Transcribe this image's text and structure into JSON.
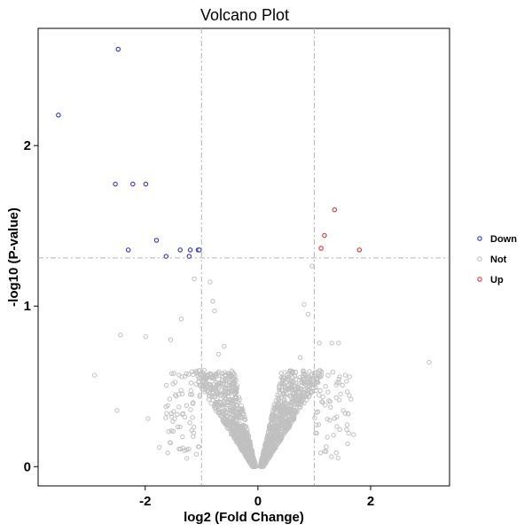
{
  "chart_data": {
    "type": "scatter",
    "title": "Volcano Plot",
    "xlabel": "log2 (Fold Change)",
    "ylabel": "-log10 (P-value)",
    "xlim": [
      -3.9,
      3.4
    ],
    "ylim": [
      -0.12,
      2.73
    ],
    "xticks": [
      -2,
      0,
      2
    ],
    "yticks": [
      0,
      1,
      2
    ],
    "thresholds": {
      "x": [
        -1,
        1
      ],
      "y": 1.3
    },
    "grid": false,
    "legend_position": "right",
    "legend": [
      {
        "key": "Down",
        "label": "Down",
        "color": "#3333cc"
      },
      {
        "key": "Not",
        "label": "Not",
        "color": "#c0c0c0"
      },
      {
        "key": "Up",
        "label": "Up",
        "color": "#dd3333"
      }
    ],
    "series": [
      {
        "name": "Down",
        "color": "#3333cc",
        "points": [
          [
            -2.48,
            2.6
          ],
          [
            -3.54,
            2.19
          ],
          [
            -2.53,
            1.76
          ],
          [
            -2.22,
            1.76
          ],
          [
            -1.99,
            1.76
          ],
          [
            -1.8,
            1.41
          ],
          [
            -2.3,
            1.35
          ],
          [
            -1.63,
            1.31
          ],
          [
            -1.38,
            1.35
          ],
          [
            -1.2,
            1.35
          ],
          [
            -1.06,
            1.35
          ],
          [
            -1.22,
            1.31
          ],
          [
            -1.04,
            1.35
          ]
        ]
      },
      {
        "name": "Up",
        "color": "#dd3333",
        "points": [
          [
            1.36,
            1.6
          ],
          [
            1.18,
            1.44
          ],
          [
            1.12,
            1.36
          ],
          [
            1.8,
            1.35
          ]
        ]
      },
      {
        "name": "Not",
        "color": "#c0c0c0",
        "points": [
          [
            0.96,
            1.25
          ],
          [
            -1.13,
            1.17
          ],
          [
            -0.85,
            1.15
          ],
          [
            -0.8,
            1.03
          ],
          [
            0.82,
            1.01
          ],
          [
            -1.36,
            0.92
          ],
          [
            -0.77,
            0.97
          ],
          [
            0.89,
            0.95
          ],
          [
            -2.44,
            0.82
          ],
          [
            -1.99,
            0.81
          ],
          [
            -1.55,
            0.79
          ],
          [
            -0.6,
            0.75
          ],
          [
            1.09,
            0.77
          ],
          [
            1.31,
            0.77
          ],
          [
            1.43,
            0.77
          ],
          [
            -2.9,
            0.57
          ],
          [
            3.04,
            0.65
          ],
          [
            1.55,
            0.57
          ],
          [
            -2.5,
            0.35
          ],
          [
            -1.95,
            0.3
          ],
          [
            -1.5,
            0.22
          ],
          [
            -1.2,
            0.45
          ],
          [
            -0.95,
            0.6
          ],
          [
            1.2,
            0.5
          ],
          [
            1.65,
            0.42
          ],
          [
            -1.75,
            0.12
          ],
          [
            -1.3,
            0.1
          ],
          [
            1.7,
            0.2
          ],
          [
            1.4,
            0.25
          ],
          [
            -0.7,
            0.7
          ],
          [
            0.75,
            0.68
          ],
          [
            -1.05,
            0.53
          ],
          [
            1.05,
            0.55
          ],
          [
            -1.6,
            0.38
          ],
          [
            1.6,
            0.33
          ],
          [
            -0.9,
            0.47
          ],
          [
            0.9,
            0.47
          ],
          [
            -1.15,
            0.4
          ],
          [
            1.15,
            0.4
          ],
          [
            -1.4,
            0.57
          ],
          [
            1.45,
            0.56
          ]
        ]
      }
    ]
  }
}
